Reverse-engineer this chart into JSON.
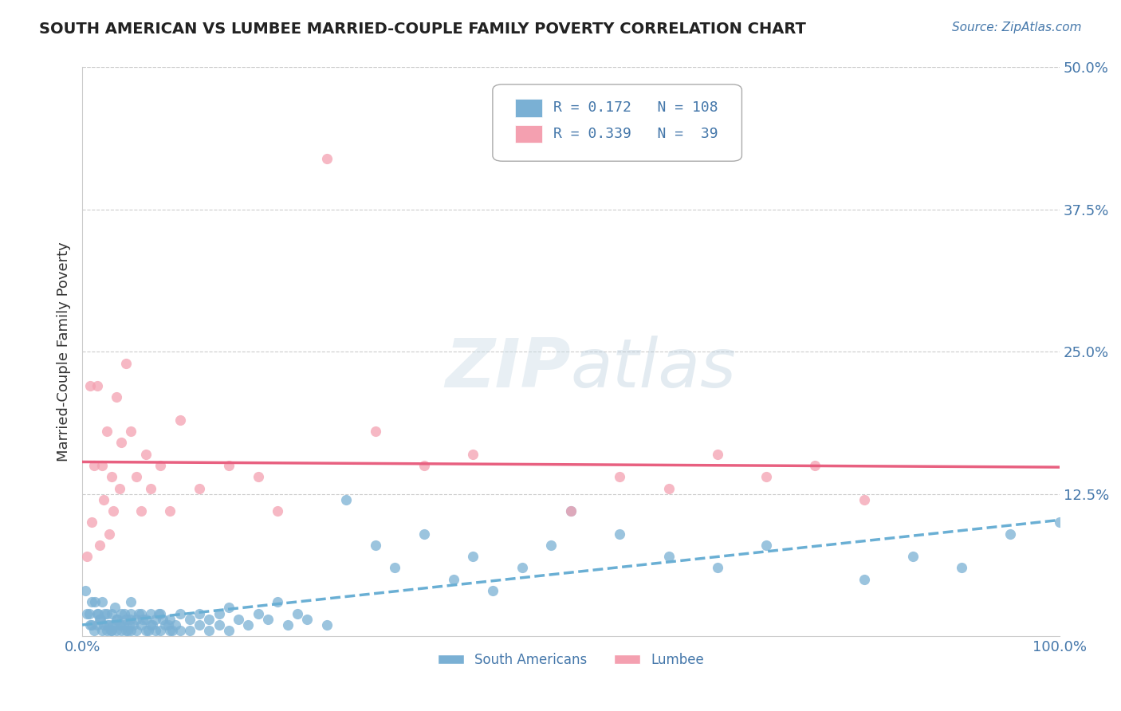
{
  "title": "SOUTH AMERICAN VS LUMBEE MARRIED-COUPLE FAMILY POVERTY CORRELATION CHART",
  "source": "Source: ZipAtlas.com",
  "ylabel": "Married-Couple Family Poverty",
  "xlim": [
    0.0,
    1.0
  ],
  "ylim": [
    0.0,
    0.5
  ],
  "blue_color": "#7ab0d4",
  "pink_color": "#f4a0b0",
  "line_blue": "#6aafd4",
  "line_pink": "#e86080",
  "legend_R1": "0.172",
  "legend_N1": "108",
  "legend_R2": "0.339",
  "legend_N2": "39",
  "background_color": "#ffffff",
  "grid_color": "#cccccc",
  "text_color": "#4477aa",
  "title_color": "#333333",
  "sa_x": [
    0.005,
    0.01,
    0.01,
    0.012,
    0.015,
    0.015,
    0.018,
    0.02,
    0.02,
    0.022,
    0.025,
    0.025,
    0.028,
    0.03,
    0.03,
    0.032,
    0.035,
    0.035,
    0.038,
    0.04,
    0.04,
    0.042,
    0.045,
    0.045,
    0.048,
    0.05,
    0.05,
    0.05,
    0.055,
    0.055,
    0.06,
    0.06,
    0.065,
    0.065,
    0.07,
    0.07,
    0.075,
    0.075,
    0.08,
    0.08,
    0.085,
    0.09,
    0.09,
    0.095,
    0.1,
    0.1,
    0.11,
    0.11,
    0.12,
    0.12,
    0.13,
    0.13,
    0.14,
    0.14,
    0.15,
    0.15,
    0.16,
    0.17,
    0.18,
    0.19,
    0.2,
    0.21,
    0.22,
    0.23,
    0.25,
    0.27,
    0.3,
    0.32,
    0.35,
    0.38,
    0.4,
    0.42,
    0.45,
    0.48,
    0.5,
    0.55,
    0.6,
    0.65,
    0.7,
    0.8,
    0.85,
    0.9,
    0.95,
    1.0,
    0.003,
    0.007,
    0.008,
    0.013,
    0.016,
    0.019,
    0.023,
    0.026,
    0.029,
    0.033,
    0.036,
    0.039,
    0.043,
    0.046,
    0.049,
    0.052,
    0.058,
    0.062,
    0.068,
    0.072,
    0.078,
    0.082,
    0.088,
    0.092
  ],
  "sa_y": [
    0.02,
    0.01,
    0.03,
    0.005,
    0.02,
    0.01,
    0.015,
    0.005,
    0.03,
    0.01,
    0.02,
    0.005,
    0.01,
    0.02,
    0.005,
    0.01,
    0.015,
    0.005,
    0.01,
    0.02,
    0.005,
    0.01,
    0.015,
    0.005,
    0.01,
    0.02,
    0.005,
    0.03,
    0.015,
    0.005,
    0.02,
    0.01,
    0.015,
    0.005,
    0.02,
    0.01,
    0.015,
    0.005,
    0.02,
    0.005,
    0.01,
    0.015,
    0.005,
    0.01,
    0.02,
    0.005,
    0.015,
    0.005,
    0.02,
    0.01,
    0.015,
    0.005,
    0.02,
    0.01,
    0.025,
    0.005,
    0.015,
    0.01,
    0.02,
    0.015,
    0.03,
    0.01,
    0.02,
    0.015,
    0.01,
    0.12,
    0.08,
    0.06,
    0.09,
    0.05,
    0.07,
    0.04,
    0.06,
    0.08,
    0.11,
    0.09,
    0.07,
    0.06,
    0.08,
    0.05,
    0.07,
    0.06,
    0.09,
    0.1,
    0.04,
    0.02,
    0.01,
    0.03,
    0.02,
    0.015,
    0.02,
    0.01,
    0.005,
    0.025,
    0.015,
    0.01,
    0.02,
    0.005,
    0.015,
    0.01,
    0.02,
    0.015,
    0.005,
    0.01,
    0.02,
    0.015,
    0.01,
    0.005
  ],
  "lumbee_x": [
    0.005,
    0.008,
    0.01,
    0.012,
    0.015,
    0.018,
    0.02,
    0.022,
    0.025,
    0.028,
    0.03,
    0.032,
    0.035,
    0.038,
    0.04,
    0.045,
    0.05,
    0.055,
    0.06,
    0.065,
    0.07,
    0.08,
    0.09,
    0.1,
    0.12,
    0.15,
    0.18,
    0.2,
    0.25,
    0.3,
    0.35,
    0.4,
    0.5,
    0.55,
    0.6,
    0.65,
    0.7,
    0.75,
    0.8
  ],
  "lumbee_y": [
    0.07,
    0.22,
    0.1,
    0.15,
    0.22,
    0.08,
    0.15,
    0.12,
    0.18,
    0.09,
    0.14,
    0.11,
    0.21,
    0.13,
    0.17,
    0.24,
    0.18,
    0.14,
    0.11,
    0.16,
    0.13,
    0.15,
    0.11,
    0.19,
    0.13,
    0.15,
    0.14,
    0.11,
    0.42,
    0.18,
    0.15,
    0.16,
    0.11,
    0.14,
    0.13,
    0.16,
    0.14,
    0.15,
    0.12
  ]
}
